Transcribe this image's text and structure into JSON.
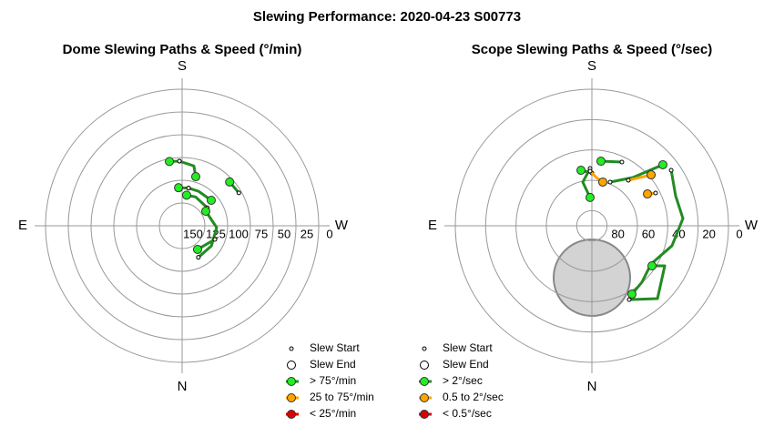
{
  "title": "Slewing Performance: 2020-04-23 S00773",
  "chart_data": [
    {
      "type": "polar",
      "title": "Dome Slewing Paths & Speed (°/min)",
      "compass_labels": [
        "S",
        "W",
        "N",
        "E"
      ],
      "rlim": [
        150,
        0
      ],
      "rticks": [
        150,
        125,
        100,
        75,
        50,
        25,
        0
      ],
      "markers": {
        "start": "Slew Start",
        "end": "Slew End"
      },
      "series": [
        {
          "name": "> 75°/min",
          "color": "#228b22",
          "marker_color": "#22ee22",
          "slews": [
            {
              "az": [
                177.6,
                191.1,
                195.5
              ],
              "alt": [
                79,
                83,
                94
              ]
            },
            {
              "az": [
                177.6,
                168.8
              ],
              "alt": [
                79,
                78
              ]
            },
            {
              "az": [
                239.9,
                227.3
              ],
              "alt": [
                78,
                79
              ]
            },
            {
              "az": [
                189.7,
                205.3,
                228.8
              ],
              "alt": [
                108,
                108,
                107.5
              ]
            },
            {
              "az": [
                189.7,
                174.6
              ],
              "alt": [
                108,
                108
              ]
            },
            {
              "az": [
                234.5,
                205.1,
                188.4
              ],
              "alt": [
                116,
                115,
                116
              ]
            },
            {
              "az": [
                332.8,
                304.5,
                273,
                238.4
              ],
              "alt": [
                111,
                111,
                112,
                119.5
              ]
            },
            {
              "az": [
                292.6,
                326.8
              ],
              "alt": [
                111,
                119
              ]
            }
          ]
        },
        {
          "name": "25 to 75°/min",
          "color": "#ffa500",
          "marker_color": "#ffa500",
          "slews": []
        },
        {
          "name": "< 25°/min",
          "color": "#dd0000",
          "marker_color": "#dd0000",
          "slews": []
        }
      ]
    },
    {
      "type": "polar",
      "title": "Scope Slewing Paths & Speed (°/sec)",
      "compass_labels": [
        "S",
        "W",
        "N",
        "E"
      ],
      "rlim": [
        90,
        0
      ],
      "rticks": [
        80,
        60,
        40,
        20,
        0
      ],
      "markers": {
        "start": "Slew Start",
        "end": "Slew End"
      },
      "series": [
        {
          "name": "> 2°/sec",
          "color": "#228b22",
          "marker_color": "#22ee22",
          "slews": [
            {
              "az": [
                235.0,
                250.3,
                265.4,
                284,
                302.9,
                318.4,
                329.6
              ],
              "alt": [
                26.2,
                31.4,
                29.8,
                35.6,
                43.6,
                40.3,
                37.8
              ]
            },
            {
              "az": [
                333.2,
                318,
                298.8,
                303.7
              ],
              "alt": [
                35.5,
                25.4,
                35.2,
                42.4
              ]
            },
            {
              "az": [
                205.2,
                188.0
              ],
              "alt": [
                43.6,
                47.0
              ]
            },
            {
              "az": [
                202.6,
                220.3,
                229.3
              ],
              "alt": [
                58.8,
                48.3,
                28.3
              ]
            },
            {
              "az": [
                178.2,
                168.2,
                176.3
              ],
              "alt": [
                52.2,
                60.6,
                71.3
              ]
            },
            {
              "az": [
                180,
                168.9
              ],
              "alt": [
                55.2,
                52.7
              ]
            }
          ]
        },
        {
          "name": "0.5 to 2°/sec",
          "color": "#ffa500",
          "marker_color": "#ffa500",
          "slews": [
            {
              "az": [
                178.1,
                185.4,
                194
              ],
              "alt": [
                54,
                58.1,
                60.3
              ]
            },
            {
              "az": [
                218.7,
                229.3
              ],
              "alt": [
                51.6,
                38.5
              ]
            },
            {
              "az": [
                242.8,
                240.2
              ],
              "alt": [
                42.8,
                47.8
              ]
            }
          ]
        },
        {
          "name": "< 0.5°/sec",
          "color": "#dd0000",
          "marker_color": "#dd0000",
          "slews": []
        }
      ]
    }
  ]
}
